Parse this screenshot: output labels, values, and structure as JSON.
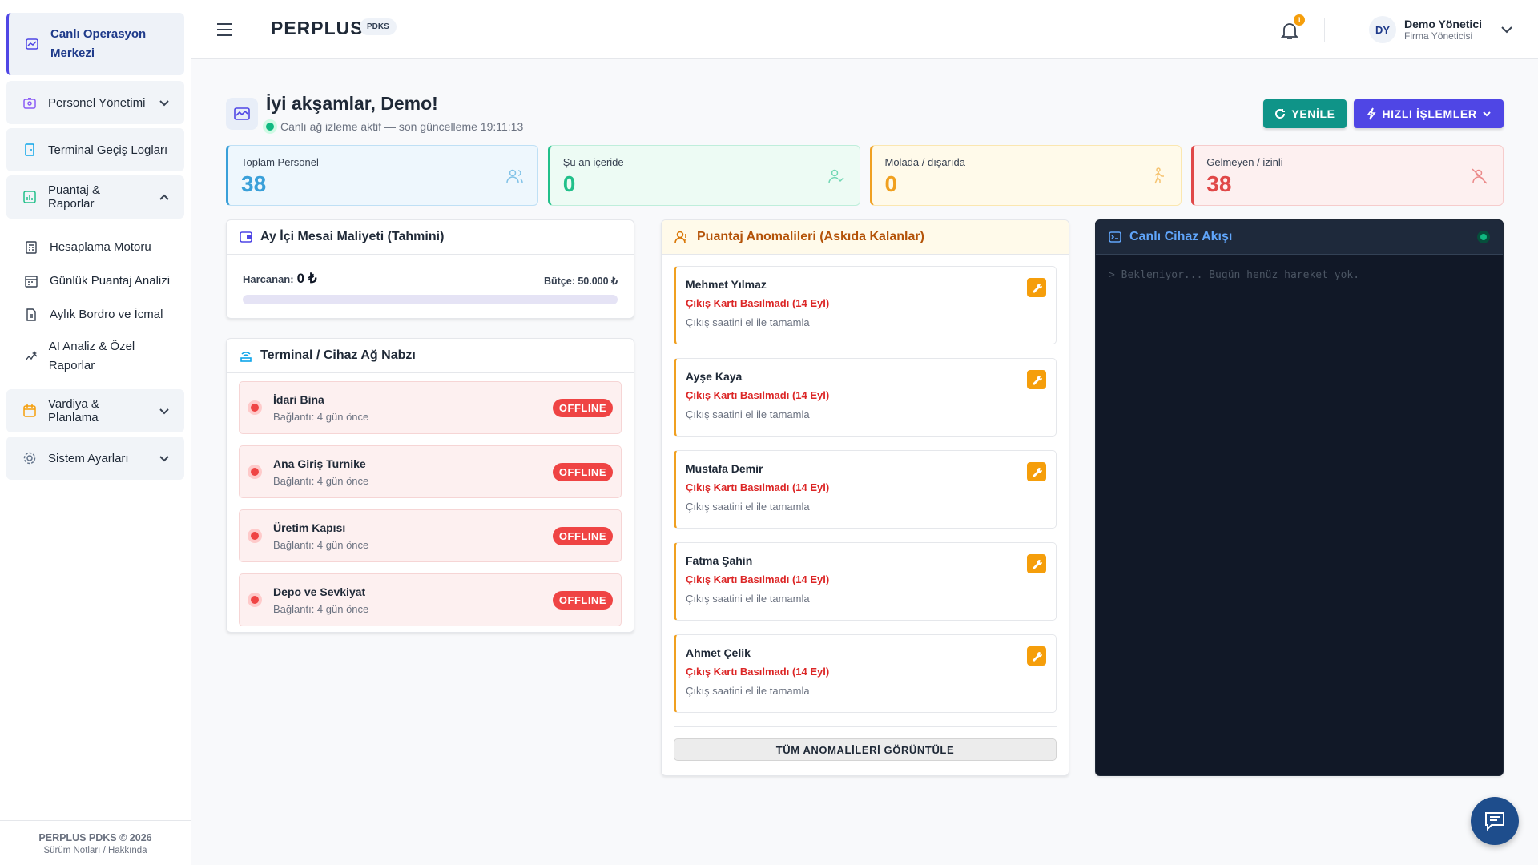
{
  "sidebar": {
    "items": [
      {
        "label": "Canlı Operasyon Merkezi",
        "active": true
      },
      {
        "label": "Personel Yönetimi",
        "expanded": false
      },
      {
        "label": "Terminal Geçiş Logları"
      },
      {
        "label": "Puantaj & Raporlar",
        "expanded": true,
        "children": [
          "Hesaplama Motoru",
          "Günlük Puantaj Analizi",
          "Aylık Bordro ve İcmal",
          "AI Analiz & Özel Raporlar"
        ]
      },
      {
        "label": "Vardiya & Planlama",
        "expanded": false
      },
      {
        "label": "Sistem Ayarları",
        "expanded": false
      }
    ],
    "footer": {
      "copyright": "PERPLUS PDKS © 2026",
      "links": "Sürüm Notları / Hakkında"
    }
  },
  "header": {
    "brand": "PERPLUS",
    "badge": "PDKS",
    "notifications": 1,
    "avatar": "DY",
    "user_name": "Demo Yönetici",
    "user_role": "Firma Yöneticisi"
  },
  "greeting": {
    "title": "İyi akşamlar, Demo!",
    "status": "Canlı ağ izleme aktif — son güncelleme 19:11:13",
    "refresh": "YENİLE",
    "quick_actions": "HIZLI İŞLEMLER"
  },
  "stats": [
    {
      "label": "Toplam Personel",
      "value": 38
    },
    {
      "label": "Şu an içeride",
      "value": 0
    },
    {
      "label": "Molada / dışarıda",
      "value": 0
    },
    {
      "label": "Gelmeyen / izinli",
      "value": 38
    }
  ],
  "cost": {
    "title": "Ay İçi Mesai Maliyeti (Tahmini)",
    "spent_label": "Harcanan:",
    "spent": "0 ₺",
    "budget": "Bütçe: 50.000 ₺"
  },
  "terminals": {
    "title": "Terminal / Cihaz Ağ Nabzı",
    "items": [
      {
        "name": "İdari Bina",
        "connection": "Bağlantı: 4 gün önce",
        "status": "OFFLINE"
      },
      {
        "name": "Ana Giriş Turnike",
        "connection": "Bağlantı: 4 gün önce",
        "status": "OFFLINE"
      },
      {
        "name": "Üretim Kapısı",
        "connection": "Bağlantı: 4 gün önce",
        "status": "OFFLINE"
      },
      {
        "name": "Depo ve Sevkiyat",
        "connection": "Bağlantı: 4 gün önce",
        "status": "OFFLINE"
      }
    ]
  },
  "anomalies": {
    "title": "Puantaj Anomalileri (Askıda Kalanlar)",
    "items": [
      {
        "name": "Mehmet Yılmaz",
        "issue": "Çıkış Kartı Basılmadı (14 Eyl)",
        "action": "Çıkış saatini el ile tamamla"
      },
      {
        "name": "Ayşe Kaya",
        "issue": "Çıkış Kartı Basılmadı (14 Eyl)",
        "action": "Çıkış saatini el ile tamamla"
      },
      {
        "name": "Mustafa Demir",
        "issue": "Çıkış Kartı Basılmadı (14 Eyl)",
        "action": "Çıkış saatini el ile tamamla"
      },
      {
        "name": "Fatma Şahin",
        "issue": "Çıkış Kartı Basılmadı (14 Eyl)",
        "action": "Çıkış saatini el ile tamamla"
      },
      {
        "name": "Ahmet Çelik",
        "issue": "Çıkış Kartı Basılmadı (14 Eyl)",
        "action": "Çıkış saatini el ile tamamla"
      }
    ],
    "view_all": "TÜM ANOMALİLERİ GÖRÜNTÜLE"
  },
  "live_feed": {
    "title": "Canlı Cihaz Akışı",
    "message": "> Bekleniyor... Bugün henüz hareket yok."
  }
}
